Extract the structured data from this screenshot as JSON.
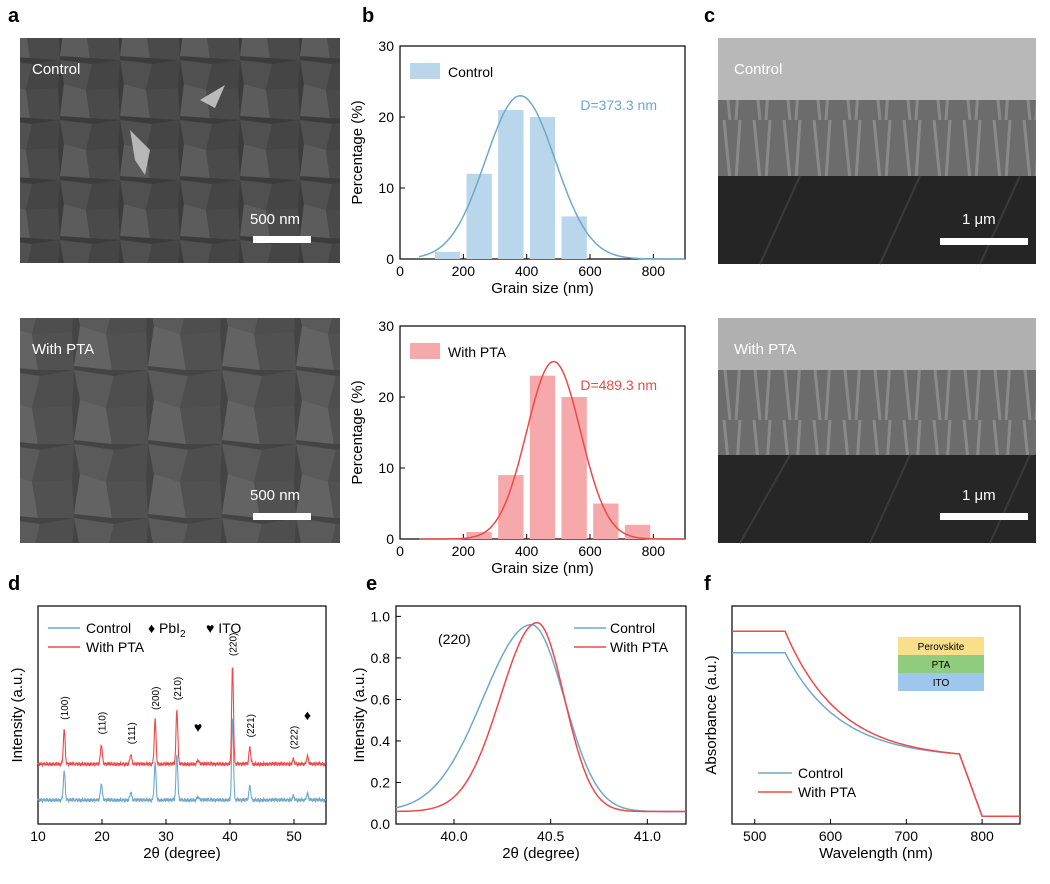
{
  "panels": {
    "a": {
      "letter": "a",
      "top_label": "Control",
      "bottom_label": "With PTA",
      "top_scale": "500 nm",
      "bottom_scale": "500 nm"
    },
    "c": {
      "letter": "c",
      "top_label": "Control",
      "bottom_label": "With PTA",
      "top_scale": "1 μm",
      "bottom_scale": "1 μm"
    },
    "b": {
      "letter": "b"
    },
    "d": {
      "letter": "d",
      "legend_markers": [
        "♦ PbI",
        "♥ ITO"
      ],
      "sub2": "2"
    },
    "e": {
      "letter": "e",
      "annotation": "(220)"
    },
    "f": {
      "letter": "f",
      "stack": [
        "Perovskite",
        "PTA",
        "ITO"
      ],
      "stack_colors": [
        "#f9df8a",
        "#8fcc7d",
        "#9fc7ec"
      ]
    }
  },
  "colors": {
    "control": "#6fa8cc",
    "pta": "#f0484a",
    "control_bar": "#b9d6ea",
    "pta_bar": "#f6a9aa"
  },
  "chart_data": [
    {
      "id": "b_top",
      "type": "bar",
      "xlabel": "Grain size (nm)",
      "ylabel": "Percentage (%)",
      "xlim": [
        0,
        900
      ],
      "ylim": [
        0,
        30
      ],
      "xticks": [
        0,
        200,
        400,
        600,
        800
      ],
      "yticks": [
        0,
        10,
        20,
        30
      ],
      "legend": "Control",
      "annotation": "D=373.3 nm",
      "bins": [
        {
          "x": 200,
          "width": 80,
          "value": 0
        },
        {
          "x": 150,
          "width": 80,
          "value": 1
        },
        {
          "x": 250,
          "width": 80,
          "value": 12
        },
        {
          "x": 350,
          "width": 80,
          "value": 21
        },
        {
          "x": 450,
          "width": 80,
          "value": 20
        },
        {
          "x": 550,
          "width": 80,
          "value": 6
        }
      ],
      "fit": {
        "mu": 380,
        "sigma": 110,
        "amp": 23
      }
    },
    {
      "id": "b_bottom",
      "type": "bar",
      "xlabel": "Grain size (nm)",
      "ylabel": "Percentage (%)",
      "xlim": [
        0,
        900
      ],
      "ylim": [
        0,
        30
      ],
      "xticks": [
        0,
        200,
        400,
        600,
        800
      ],
      "yticks": [
        0,
        10,
        20,
        30
      ],
      "legend": "With PTA",
      "annotation": "D=489.3 nm",
      "bins": [
        {
          "x": 250,
          "width": 80,
          "value": 1
        },
        {
          "x": 350,
          "width": 80,
          "value": 9
        },
        {
          "x": 450,
          "width": 80,
          "value": 23
        },
        {
          "x": 550,
          "width": 80,
          "value": 20
        },
        {
          "x": 650,
          "width": 80,
          "value": 5
        },
        {
          "x": 750,
          "width": 80,
          "value": 2
        }
      ],
      "fit": {
        "mu": 485,
        "sigma": 85,
        "amp": 25
      }
    },
    {
      "id": "d",
      "type": "line",
      "xlabel": "2θ (degree)",
      "ylabel": "Intensity (a.u.)",
      "xlim": [
        10,
        55
      ],
      "xticks": [
        10,
        20,
        30,
        40,
        50
      ],
      "series": [
        {
          "name": "Control"
        },
        {
          "name": "With PTA"
        }
      ],
      "peaks": [
        {
          "x": 14.1,
          "h": 0.35,
          "label": "(100)"
        },
        {
          "x": 19.9,
          "h": 0.2,
          "label": "(110)"
        },
        {
          "x": 24.5,
          "h": 0.1,
          "label": "(111)"
        },
        {
          "x": 28.3,
          "h": 0.45,
          "label": "(200)"
        },
        {
          "x": 31.7,
          "h": 0.55,
          "label": "(210)"
        },
        {
          "x": 35.0,
          "h": 0.04,
          "label": ""
        },
        {
          "x": 40.4,
          "h": 1.0,
          "label": "(220)"
        },
        {
          "x": 43.1,
          "h": 0.17,
          "label": "(221)"
        },
        {
          "x": 49.9,
          "h": 0.05,
          "label": "(222)"
        },
        {
          "x": 52.1,
          "h": 0.08,
          "label": ""
        }
      ]
    },
    {
      "id": "e",
      "type": "line",
      "xlabel": "2θ (degree)",
      "ylabel": "Intensity (a.u.)",
      "xlim": [
        39.7,
        41.2
      ],
      "ylim": [
        0,
        1.05
      ],
      "xticks": [
        40.0,
        40.5,
        41.0
      ],
      "yticks": [
        0.0,
        0.2,
        0.4,
        0.6,
        0.8,
        1.0
      ],
      "series": [
        {
          "name": "Control",
          "peak": 40.4,
          "height": 0.96
        },
        {
          "name": "With PTA",
          "peak": 40.43,
          "height": 0.97
        }
      ]
    },
    {
      "id": "f",
      "type": "line",
      "xlabel": "Wavelength (nm)",
      "ylabel": "Absorbance (a.u.)",
      "xlim": [
        470,
        850
      ],
      "xticks": [
        500,
        600,
        700,
        800
      ],
      "series": [
        {
          "name": "Control",
          "plateau": 0.88
        },
        {
          "name": "With PTA",
          "plateau": 0.99
        }
      ]
    }
  ]
}
